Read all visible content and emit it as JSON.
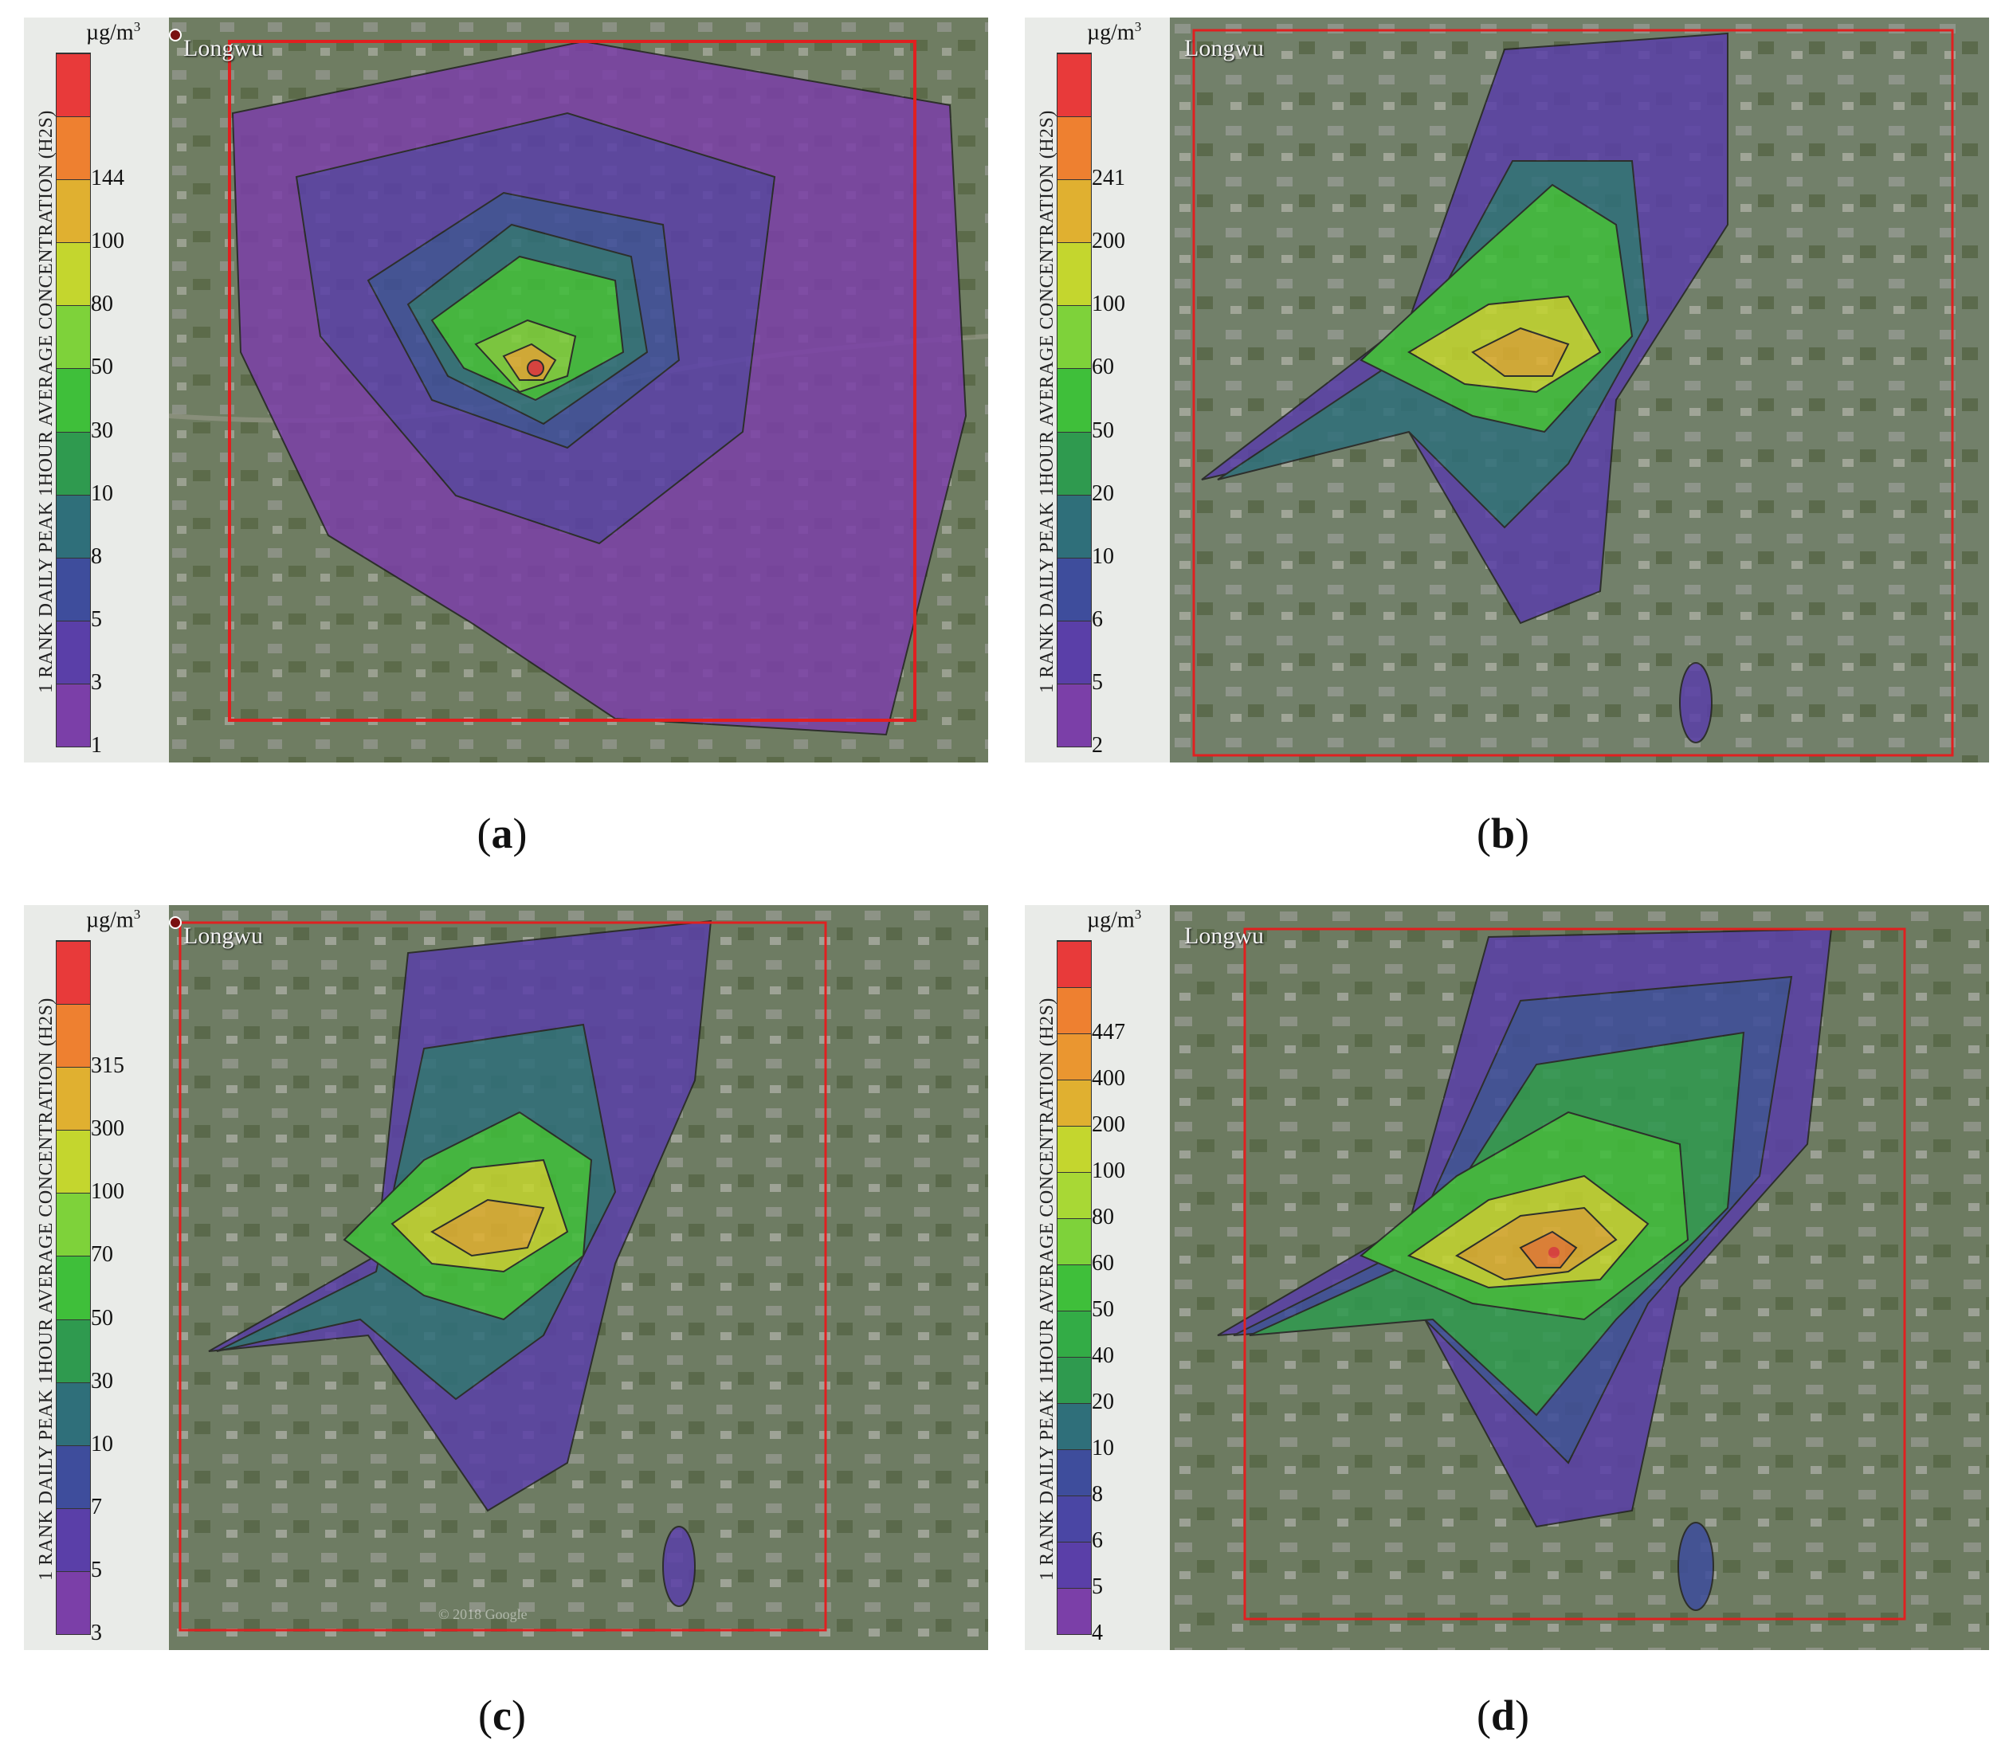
{
  "panels": [
    {
      "letter": "a",
      "place": "Longwu",
      "unit": "µg/m",
      "unit_exp": "3",
      "axis_title": "1 RANK DAILY PEAK 1HOUR AVERAGE CONCENTRATION (H2S)",
      "scale": [
        {
          "label": "1",
          "color": "#7b3fa8"
        },
        {
          "label": "3",
          "color": "#5a3fa8"
        },
        {
          "label": "5",
          "color": "#3e4d9c"
        },
        {
          "label": "8",
          "color": "#2f6f7a"
        },
        {
          "label": "10",
          "color": "#2f9a4f"
        },
        {
          "label": "30",
          "color": "#3fbf3a"
        },
        {
          "label": "50",
          "color": "#7ed23a"
        },
        {
          "label": "80",
          "color": "#c4d62e"
        },
        {
          "label": "100",
          "color": "#e0b030"
        },
        {
          "label": "144",
          "color": "#ee8030"
        },
        {
          "label": "",
          "color": "#e83a3a"
        }
      ]
    },
    {
      "letter": "b",
      "place": "Longwu",
      "unit": "µg/m",
      "unit_exp": "3",
      "axis_title": "1 RANK DAILY PEAK 1HOUR AVERAGE CONCENTRATION (H2S)",
      "scale": [
        {
          "label": "2",
          "color": "#7b3fa8"
        },
        {
          "label": "5",
          "color": "#5a3fa8"
        },
        {
          "label": "6",
          "color": "#3e4d9c"
        },
        {
          "label": "10",
          "color": "#2f6f7a"
        },
        {
          "label": "20",
          "color": "#2f9a4f"
        },
        {
          "label": "50",
          "color": "#3fbf3a"
        },
        {
          "label": "60",
          "color": "#7ed23a"
        },
        {
          "label": "100",
          "color": "#c4d62e"
        },
        {
          "label": "200",
          "color": "#e0b030"
        },
        {
          "label": "241",
          "color": "#ee8030"
        },
        {
          "label": "",
          "color": "#e83a3a"
        }
      ]
    },
    {
      "letter": "c",
      "place": "Longwu",
      "unit": "µg/m",
      "unit_exp": "3",
      "axis_title": "1 RANK DAILY PEAK 1HOUR AVERAGE CONCENTRATION (H2S)",
      "footer": "© 2018 Google",
      "scale": [
        {
          "label": "3",
          "color": "#7b3fa8"
        },
        {
          "label": "5",
          "color": "#5a3fa8"
        },
        {
          "label": "7",
          "color": "#3e4d9c"
        },
        {
          "label": "10",
          "color": "#2f6f7a"
        },
        {
          "label": "30",
          "color": "#2f9a4f"
        },
        {
          "label": "50",
          "color": "#3fbf3a"
        },
        {
          "label": "70",
          "color": "#7ed23a"
        },
        {
          "label": "100",
          "color": "#c4d62e"
        },
        {
          "label": "300",
          "color": "#e0b030"
        },
        {
          "label": "315",
          "color": "#ee8030"
        },
        {
          "label": "",
          "color": "#e83a3a"
        }
      ]
    },
    {
      "letter": "d",
      "place": "Longwu",
      "unit": "µg/m",
      "unit_exp": "3",
      "axis_title": "1 RANK DAILY PEAK 1HOUR AVERAGE CONCENTRATION (H2S)",
      "scale": [
        {
          "label": "4",
          "color": "#7b3fa8"
        },
        {
          "label": "5",
          "color": "#5a3fa8"
        },
        {
          "label": "6",
          "color": "#4a46a4"
        },
        {
          "label": "8",
          "color": "#3e4d9c"
        },
        {
          "label": "10",
          "color": "#2f6f7a"
        },
        {
          "label": "20",
          "color": "#2f9a4f"
        },
        {
          "label": "40",
          "color": "#33ac46"
        },
        {
          "label": "50",
          "color": "#3fbf3a"
        },
        {
          "label": "60",
          "color": "#7ed23a"
        },
        {
          "label": "80",
          "color": "#a8d835"
        },
        {
          "label": "100",
          "color": "#c4d62e"
        },
        {
          "label": "200",
          "color": "#e0b030"
        },
        {
          "label": "400",
          "color": "#ea9630"
        },
        {
          "label": "447",
          "color": "#ee8030"
        },
        {
          "label": "",
          "color": "#e83a3a"
        }
      ]
    }
  ],
  "colors": {
    "boundary": "#e02020",
    "satellite_base": "#6b7a5c"
  }
}
